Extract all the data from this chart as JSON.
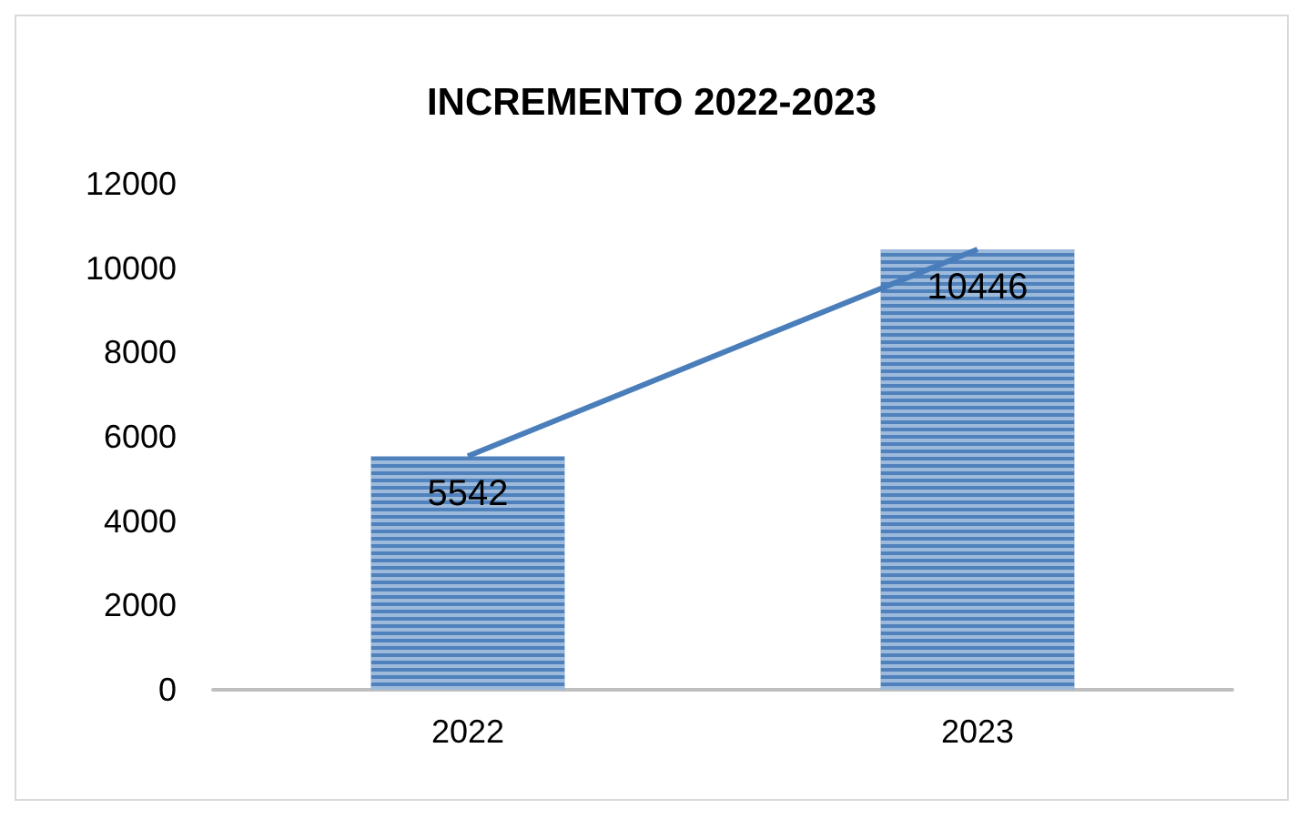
{
  "chart_data": {
    "type": "bar",
    "title": "INCREMENTO 2022-2023",
    "categories": [
      "2022",
      "2023"
    ],
    "series": [
      {
        "color": "#4f81bd",
        "values": [
          5542,
          10446
        ],
        "value_labels": [
          "5542",
          "10446"
        ]
      },
      {
        "type": "line",
        "color": "#4a7ebb",
        "values": [
          5542,
          10446
        ]
      }
    ],
    "ylim": [
      0,
      12000
    ],
    "yticks": [
      0,
      2000,
      4000,
      6000,
      8000,
      10000,
      12000
    ],
    "grid": false,
    "marker": "none"
  }
}
